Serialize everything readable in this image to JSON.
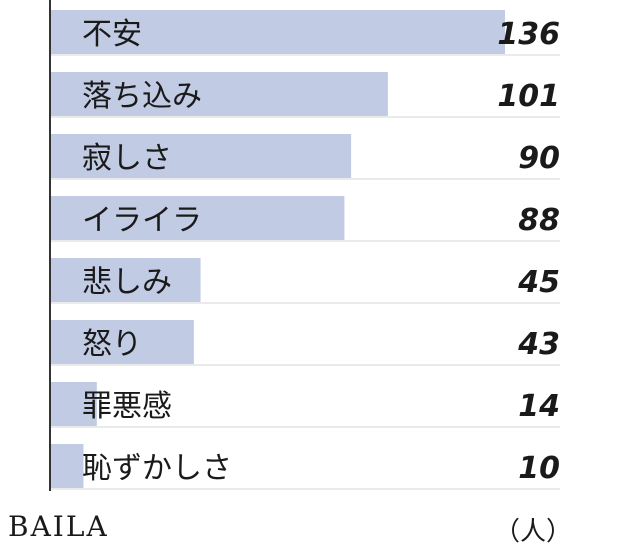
{
  "chart_data": {
    "type": "bar",
    "orientation": "horizontal",
    "categories": [
      "不安",
      "落ち込み",
      "寂しさ",
      "イライラ",
      "悲しみ",
      "怒り",
      "罪悪感",
      "恥ずかしさ"
    ],
    "values": [
      136,
      101,
      90,
      88,
      45,
      43,
      14,
      10
    ],
    "unit": "（人）",
    "bar_color": "#c1cbe4",
    "axis_color": "#333333",
    "xlim": [
      0,
      136
    ]
  },
  "brand": {
    "name": "BAILA"
  }
}
